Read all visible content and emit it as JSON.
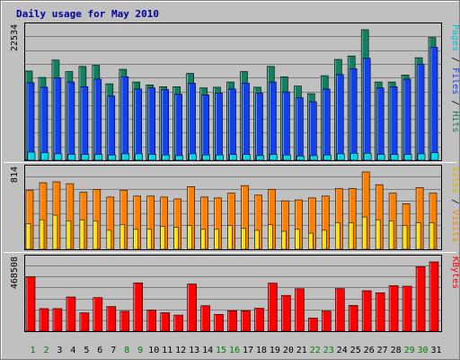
{
  "chart_data": {
    "type": "bar",
    "title": "Daily usage for May 2010",
    "categories": [
      "1",
      "2",
      "3",
      "4",
      "5",
      "6",
      "7",
      "8",
      "9",
      "10",
      "11",
      "12",
      "13",
      "14",
      "15",
      "16",
      "17",
      "18",
      "19",
      "20",
      "21",
      "22",
      "23",
      "24",
      "25",
      "26",
      "27",
      "28",
      "29",
      "30",
      "31"
    ],
    "weekend_days": [
      "1",
      "2",
      "8",
      "9",
      "15",
      "16",
      "22",
      "23",
      "29",
      "30"
    ],
    "panels": [
      {
        "id": "hits",
        "ymax_label": "22534",
        "ymax": 22534,
        "side_labels": [
          "Pages",
          "Files",
          "Hits"
        ],
        "series": [
          {
            "name": "Hits",
            "color": "#108060",
            "values": [
              15400,
              14300,
              17300,
              15300,
              16200,
              16400,
              13200,
              15700,
              13500,
              13000,
              12700,
              12700,
              15000,
              12500,
              12600,
              13500,
              15300,
              12600,
              16200,
              14400,
              12800,
              11500,
              14600,
              17400,
              18000,
              22534,
              13500,
              13500,
              14700,
              17700,
              21200
            ]
          },
          {
            "name": "Files",
            "color": "#1040f0",
            "values": [
              13400,
              12600,
              14200,
              13500,
              12700,
              14000,
              11100,
              14400,
              12300,
              12500,
              12200,
              11400,
              13300,
              11300,
              11600,
              12300,
              13300,
              11600,
              13500,
              11800,
              10800,
              10100,
              12300,
              14800,
              15800,
              17600,
              12500,
              12700,
              14000,
              16600,
              19500
            ]
          },
          {
            "name": "Pages",
            "color": "#00d8f0",
            "values": [
              1400,
              1300,
              1100,
              1000,
              1000,
              1000,
              900,
              1100,
              1100,
              1000,
              900,
              800,
              1100,
              900,
              900,
              1000,
              1000,
              800,
              1000,
              900,
              700,
              800,
              900,
              1100,
              1200,
              1200,
              1000,
              1000,
              1000,
              1100,
              1300
            ]
          }
        ]
      },
      {
        "id": "visits",
        "ymax_label": "814",
        "ymax": 814,
        "side_labels": [
          "Sites",
          "Visits"
        ],
        "series": [
          {
            "name": "Visits",
            "color": "#ff8000",
            "values": [
              620,
              700,
              710,
              690,
              600,
              630,
              550,
              620,
              560,
              560,
              550,
              530,
              660,
              550,
              540,
              590,
              670,
              570,
              630,
              510,
              520,
              540,
              560,
              640,
              640,
              814,
              680,
              590,
              480,
              650,
              590
            ]
          },
          {
            "name": "Sites",
            "color": "#ffe000",
            "values": [
              270,
              310,
              360,
              300,
              310,
              300,
              200,
              260,
              210,
              210,
              240,
              230,
              250,
              210,
              210,
              250,
              220,
              200,
              260,
              190,
              210,
              170,
              200,
              280,
              280,
              340,
              310,
              300,
              250,
              280,
              280
            ]
          }
        ]
      },
      {
        "id": "kbytes",
        "ymax_label": "468508",
        "ymax": 468508,
        "side_labels": [
          "KBytes"
        ],
        "series": [
          {
            "name": "KBytes",
            "color": "#ff0000",
            "values": [
              368000,
              153000,
              153000,
              231000,
              124000,
              227000,
              167000,
              135000,
              326000,
              142000,
              125000,
              109000,
              319000,
              172000,
              114000,
              139000,
              139000,
              155000,
              325000,
              242000,
              287000,
              89000,
              136000,
              288000,
              174000,
              274000,
              260000,
              308000,
              304000,
              436000,
              468508
            ]
          }
        ]
      }
    ],
    "colors": {
      "background": "#c0c0c0",
      "title": "#0000a0",
      "grid": "#808080",
      "frame_dark": "#808080",
      "frame_light": "#ffffff",
      "weekday_label": "#000000",
      "weekend_label": "#008000",
      "separator": "#ffffff"
    }
  }
}
